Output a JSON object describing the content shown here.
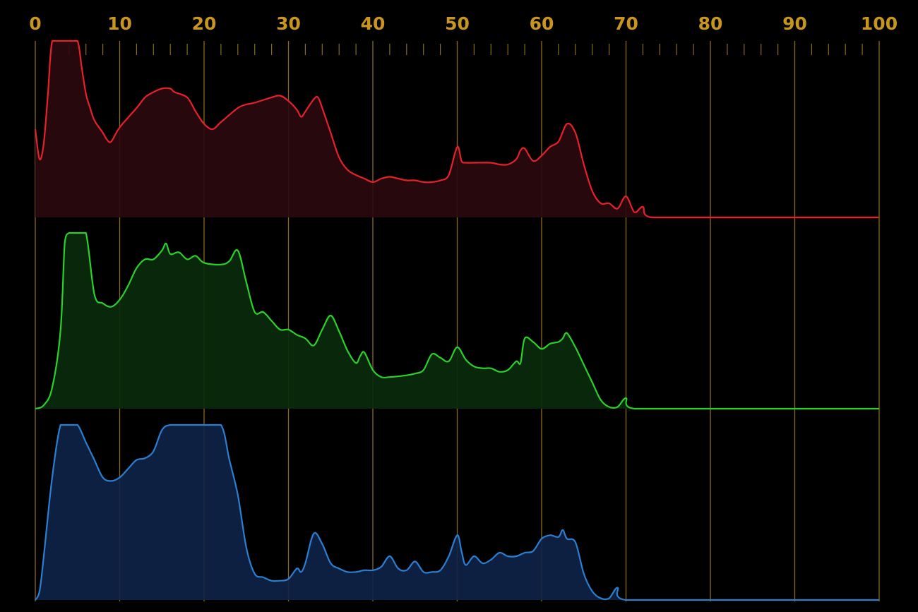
{
  "chart_data": {
    "type": "area",
    "title": "",
    "xlabel": "",
    "ylabel": "",
    "xlim": [
      0,
      100
    ],
    "ylim": [
      0,
      100
    ],
    "x_ticks": [
      "0",
      "10",
      "20",
      "30",
      "40",
      "50",
      "60",
      "70",
      "80",
      "90",
      "100"
    ],
    "grid": true,
    "legend": "none",
    "colors": {
      "background": "#000000",
      "grid": "#8a6a1e",
      "tick_label": "#c8961e",
      "red": "#e8202a",
      "red_fill": "#2a0a0e",
      "green": "#2bd12b",
      "green_fill": "#0a2a0c",
      "blue": "#2a7fd0",
      "blue_fill": "#0f2347"
    },
    "series": [
      {
        "channel": "red",
        "points": [
          [
            0,
            50
          ],
          [
            0.5,
            33
          ],
          [
            1,
            42
          ],
          [
            1.5,
            70
          ],
          [
            2,
            100
          ],
          [
            3,
            100
          ],
          [
            4,
            100
          ],
          [
            5,
            100
          ],
          [
            5.5,
            85
          ],
          [
            6,
            70
          ],
          [
            6.5,
            62
          ],
          [
            7,
            55
          ],
          [
            8,
            48
          ],
          [
            8.5,
            44
          ],
          [
            9,
            43
          ],
          [
            10,
            51
          ],
          [
            12,
            62
          ],
          [
            13,
            68
          ],
          [
            14,
            71
          ],
          [
            15,
            73
          ],
          [
            16,
            73
          ],
          [
            16.5,
            71
          ],
          [
            18,
            68
          ],
          [
            19,
            60
          ],
          [
            20,
            53
          ],
          [
            21,
            50
          ],
          [
            22,
            54
          ],
          [
            24,
            62
          ],
          [
            25,
            64
          ],
          [
            26,
            65
          ],
          [
            28,
            68
          ],
          [
            29,
            69
          ],
          [
            30,
            66
          ],
          [
            31,
            61
          ],
          [
            31.5,
            57
          ],
          [
            32,
            60
          ],
          [
            33,
            67
          ],
          [
            33.5,
            68
          ],
          [
            34,
            62
          ],
          [
            35,
            48
          ],
          [
            36,
            34
          ],
          [
            37,
            27
          ],
          [
            38,
            24
          ],
          [
            39,
            22
          ],
          [
            40,
            20
          ],
          [
            41,
            22
          ],
          [
            42,
            23
          ],
          [
            43,
            22
          ],
          [
            44,
            21
          ],
          [
            45,
            21
          ],
          [
            46,
            20
          ],
          [
            47,
            20
          ],
          [
            48,
            21
          ],
          [
            49,
            24
          ],
          [
            50,
            40
          ],
          [
            50.5,
            32
          ],
          [
            51,
            31
          ],
          [
            52,
            31
          ],
          [
            54,
            31
          ],
          [
            55,
            30
          ],
          [
            56,
            30
          ],
          [
            57,
            33
          ],
          [
            57.5,
            38
          ],
          [
            58,
            39
          ],
          [
            59,
            32
          ],
          [
            60,
            35
          ],
          [
            61,
            40
          ],
          [
            62,
            43
          ],
          [
            63,
            53
          ],
          [
            64,
            48
          ],
          [
            65,
            30
          ],
          [
            66,
            15
          ],
          [
            67,
            8
          ],
          [
            68,
            8
          ],
          [
            69,
            5
          ],
          [
            70,
            12
          ],
          [
            71,
            3
          ],
          [
            72,
            6
          ],
          [
            73,
            0
          ],
          [
            80,
            0
          ],
          [
            90,
            0
          ],
          [
            100,
            0
          ]
        ]
      },
      {
        "channel": "green",
        "points": [
          [
            0,
            0
          ],
          [
            1,
            2
          ],
          [
            2,
            12
          ],
          [
            3,
            45
          ],
          [
            3.5,
            95
          ],
          [
            4,
            100
          ],
          [
            5,
            100
          ],
          [
            6,
            100
          ],
          [
            7,
            65
          ],
          [
            8,
            60
          ],
          [
            9,
            58
          ],
          [
            10,
            62
          ],
          [
            11,
            70
          ],
          [
            12,
            80
          ],
          [
            13,
            85
          ],
          [
            14,
            85
          ],
          [
            15,
            90
          ],
          [
            15.5,
            94
          ],
          [
            16,
            88
          ],
          [
            17,
            89
          ],
          [
            18,
            85
          ],
          [
            19,
            87
          ],
          [
            20,
            83
          ],
          [
            22,
            82
          ],
          [
            23,
            84
          ],
          [
            24,
            90
          ],
          [
            25,
            72
          ],
          [
            26,
            55
          ],
          [
            27,
            55
          ],
          [
            28,
            50
          ],
          [
            29,
            45
          ],
          [
            30,
            45
          ],
          [
            31,
            42
          ],
          [
            32,
            40
          ],
          [
            33,
            36
          ],
          [
            34,
            45
          ],
          [
            35,
            53
          ],
          [
            36,
            44
          ],
          [
            37,
            33
          ],
          [
            38,
            26
          ],
          [
            38.5,
            30
          ],
          [
            39,
            32
          ],
          [
            40,
            22
          ],
          [
            41,
            18
          ],
          [
            42,
            18
          ],
          [
            44,
            19
          ],
          [
            45,
            20
          ],
          [
            46,
            22
          ],
          [
            47,
            31
          ],
          [
            48,
            29
          ],
          [
            49,
            27
          ],
          [
            50,
            35
          ],
          [
            51,
            28
          ],
          [
            52,
            24
          ],
          [
            53,
            23
          ],
          [
            54,
            23
          ],
          [
            55,
            21
          ],
          [
            56,
            22
          ],
          [
            57,
            27
          ],
          [
            57.5,
            26
          ],
          [
            58,
            40
          ],
          [
            59,
            38
          ],
          [
            60,
            34
          ],
          [
            61,
            37
          ],
          [
            62,
            38
          ],
          [
            62.5,
            40
          ],
          [
            63,
            43
          ],
          [
            64,
            35
          ],
          [
            65,
            25
          ],
          [
            66,
            15
          ],
          [
            67,
            5
          ],
          [
            68,
            1
          ],
          [
            69,
            1
          ],
          [
            70,
            6
          ],
          [
            71,
            0
          ],
          [
            80,
            0
          ],
          [
            90,
            0
          ],
          [
            100,
            0
          ]
        ]
      },
      {
        "channel": "blue",
        "points": [
          [
            0,
            0
          ],
          [
            0.5,
            5
          ],
          [
            1,
            25
          ],
          [
            2,
            70
          ],
          [
            3,
            100
          ],
          [
            4,
            100
          ],
          [
            5,
            100
          ],
          [
            6,
            90
          ],
          [
            7,
            80
          ],
          [
            8,
            70
          ],
          [
            9,
            68
          ],
          [
            10,
            70
          ],
          [
            11,
            75
          ],
          [
            12,
            80
          ],
          [
            13,
            81
          ],
          [
            14,
            85
          ],
          [
            15,
            97
          ],
          [
            16,
            100
          ],
          [
            18,
            100
          ],
          [
            20,
            100
          ],
          [
            22,
            100
          ],
          [
            23,
            80
          ],
          [
            24,
            60
          ],
          [
            25,
            30
          ],
          [
            26,
            15
          ],
          [
            27,
            13
          ],
          [
            28,
            11
          ],
          [
            29,
            11
          ],
          [
            30,
            12
          ],
          [
            31,
            18
          ],
          [
            31.5,
            16
          ],
          [
            32,
            21
          ],
          [
            33,
            38
          ],
          [
            34,
            32
          ],
          [
            35,
            21
          ],
          [
            36,
            18
          ],
          [
            37,
            16
          ],
          [
            38,
            16
          ],
          [
            39,
            17
          ],
          [
            40,
            17
          ],
          [
            41,
            19
          ],
          [
            42,
            25
          ],
          [
            43,
            18
          ],
          [
            44,
            17
          ],
          [
            45,
            22
          ],
          [
            46,
            16
          ],
          [
            47,
            16
          ],
          [
            48,
            17
          ],
          [
            49,
            25
          ],
          [
            50,
            37
          ],
          [
            50.5,
            28
          ],
          [
            51,
            20
          ],
          [
            52,
            25
          ],
          [
            53,
            21
          ],
          [
            54,
            23
          ],
          [
            55,
            27
          ],
          [
            56,
            25
          ],
          [
            57,
            25
          ],
          [
            58,
            27
          ],
          [
            59,
            28
          ],
          [
            60,
            35
          ],
          [
            61,
            37
          ],
          [
            62,
            36
          ],
          [
            62.5,
            40
          ],
          [
            63,
            35
          ],
          [
            64,
            33
          ],
          [
            65,
            15
          ],
          [
            66,
            5
          ],
          [
            67,
            1
          ],
          [
            68,
            1
          ],
          [
            69,
            7
          ],
          [
            70,
            0
          ],
          [
            80,
            0
          ],
          [
            90,
            0
          ],
          [
            100,
            0
          ]
        ]
      }
    ]
  }
}
